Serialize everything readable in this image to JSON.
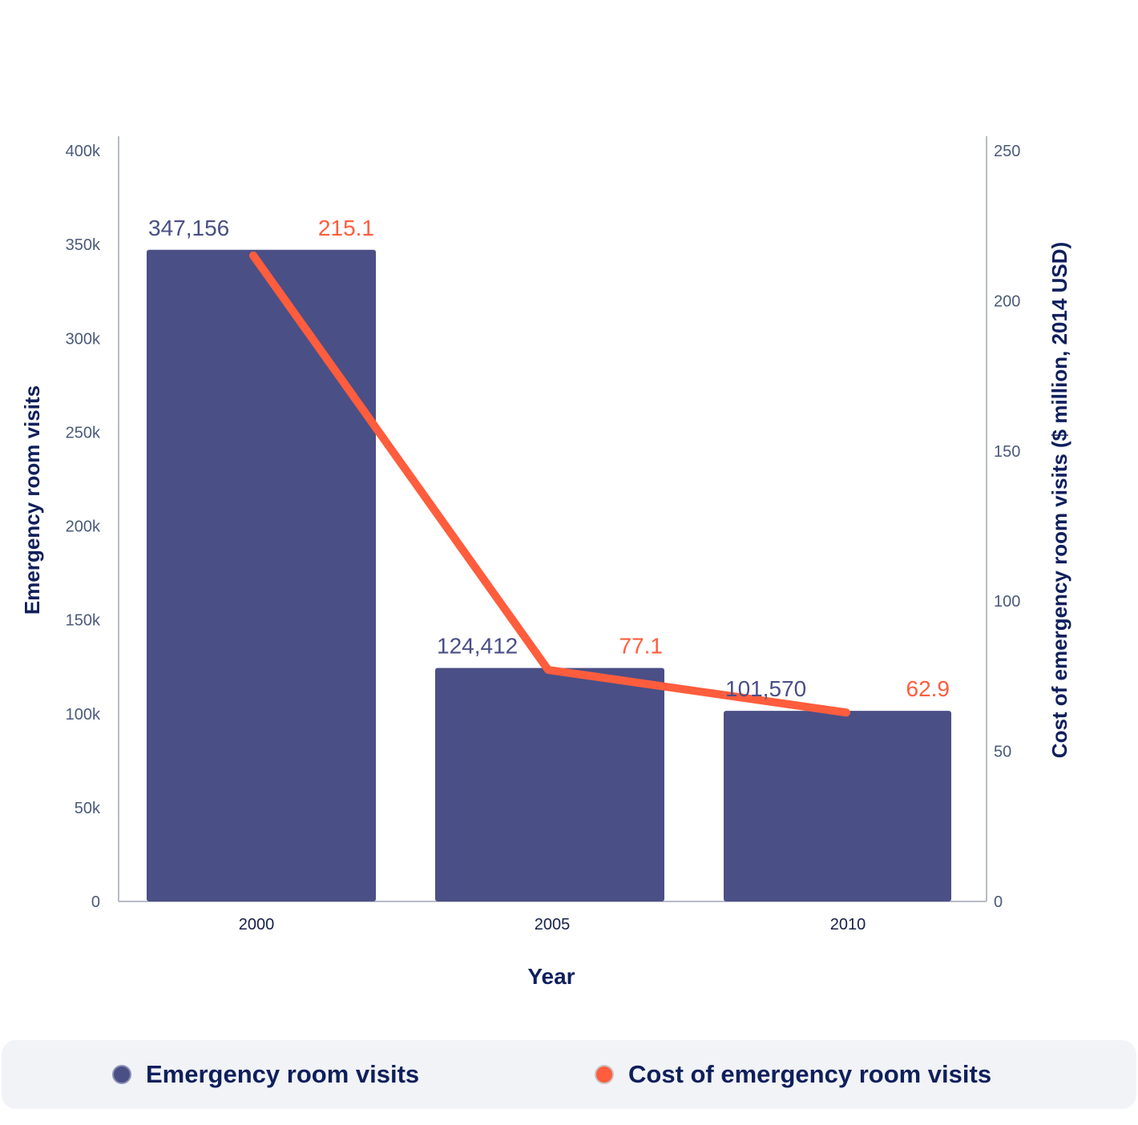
{
  "colors": {
    "visits": "#4a4f86",
    "cost": "#ff5d3d",
    "axis_text": "#0f1f5c",
    "tick_text": "#4a5a7a",
    "axis_line": "#b8bcc8",
    "legend_bg": "#f1f3f7"
  },
  "chart_data": {
    "type": "bar",
    "categories": [
      "2000",
      "2005",
      "2010"
    ],
    "xlabel": "Year",
    "ylabel": "Emergency room visits",
    "y2label": "Cost of emergency room visits ($ million, 2014 USD)",
    "ylim": [
      0,
      400000
    ],
    "y2lim": [
      0,
      250
    ],
    "yticks": [
      {
        "value": 0,
        "label": "0"
      },
      {
        "value": 50000,
        "label": "50k"
      },
      {
        "value": 100000,
        "label": "100k"
      },
      {
        "value": 150000,
        "label": "150k"
      },
      {
        "value": 200000,
        "label": "200k"
      },
      {
        "value": 250000,
        "label": "250k"
      },
      {
        "value": 300000,
        "label": "300k"
      },
      {
        "value": 350000,
        "label": "350k"
      },
      {
        "value": 400000,
        "label": "400k"
      }
    ],
    "y2ticks": [
      {
        "value": 0,
        "label": "0"
      },
      {
        "value": 50,
        "label": "50"
      },
      {
        "value": 100,
        "label": "100"
      },
      {
        "value": 150,
        "label": "150"
      },
      {
        "value": 200,
        "label": "200"
      },
      {
        "value": 250,
        "label": "250"
      }
    ],
    "series": [
      {
        "name": "Emergency room visits",
        "type": "bar",
        "axis": "left",
        "values": [
          347156,
          124412,
          101570
        ],
        "labels": [
          "347,156",
          "124,412",
          "101,570"
        ]
      },
      {
        "name": "Cost of emergency room visits",
        "type": "line",
        "axis": "right",
        "values": [
          215.1,
          77.1,
          62.9
        ],
        "labels": [
          "215.1",
          "77.1",
          "62.9"
        ]
      }
    ],
    "grid": false,
    "legend_position": "bottom"
  },
  "legend": {
    "items": [
      {
        "label": "Emergency room visits"
      },
      {
        "label": "Cost of emergency room visits"
      }
    ]
  }
}
